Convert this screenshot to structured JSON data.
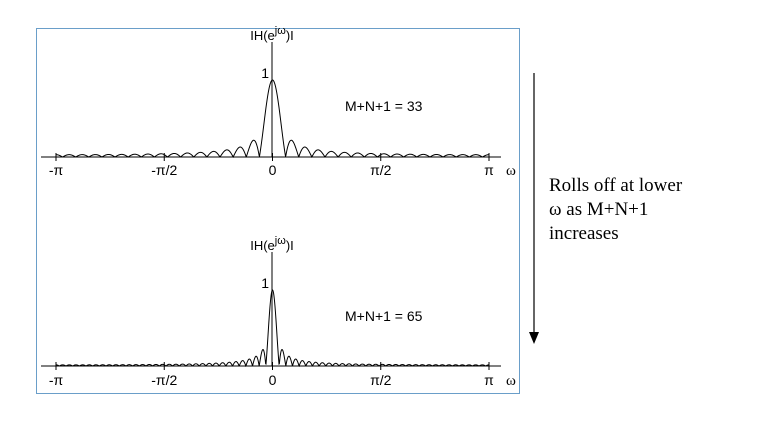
{
  "chart_data": [
    {
      "type": "line",
      "title": "",
      "ylabel": "|H(e^{jω})|",
      "ylabel_main": "IH(e",
      "ylabel_sup": "jω",
      "ylabel_end": ")I",
      "xlabel": "ω",
      "x_tick_labels": [
        "-π",
        "-π/2",
        "0",
        "π/2",
        "π"
      ],
      "x_tick_values": [
        -3.1416,
        -1.5708,
        0,
        1.5708,
        3.1416
      ],
      "xlim": [
        -3.1416,
        3.1416
      ],
      "ylim": [
        0,
        1
      ],
      "y_tick_labels": [
        "1"
      ],
      "annotation": "M+N+1 = 33",
      "filter_length": 33,
      "series": [
        {
          "name": "",
          "function": "|sin(L·ω/2) / (L·sin(ω/2))|, L = 33",
          "x": [
            -3.1416,
            -1.5708,
            -0.5712,
            -0.2856,
            -0.1904,
            0,
            0.1904,
            0.2856,
            0.5712,
            1.5708,
            3.1416
          ],
          "y": [
            0.03,
            0.04,
            0.04,
            0.13,
            0.0,
            1.0,
            0.0,
            0.13,
            0.04,
            0.04,
            0.03
          ]
        }
      ]
    },
    {
      "type": "line",
      "title": "",
      "ylabel": "|H(e^{jω})|",
      "ylabel_main": "IH(e",
      "ylabel_sup": "jω",
      "ylabel_end": ")I",
      "xlabel": "ω",
      "x_tick_labels": [
        "-π",
        "-π/2",
        "0",
        "π/2",
        "π"
      ],
      "x_tick_values": [
        -3.1416,
        -1.5708,
        0,
        1.5708,
        3.1416
      ],
      "xlim": [
        -3.1416,
        3.1416
      ],
      "ylim": [
        0,
        1
      ],
      "y_tick_labels": [
        "1"
      ],
      "annotation": "M+N+1 = 65",
      "filter_length": 65,
      "series": [
        {
          "name": "",
          "function": "|sin(L·ω/2) / (L·sin(ω/2))|, L = 65",
          "x": [
            -3.1416,
            -1.5708,
            -0.145,
            -0.0967,
            0,
            0.0967,
            0.145,
            1.5708,
            3.1416
          ],
          "y": [
            0.015,
            0.02,
            0.13,
            0.0,
            1.0,
            0.0,
            0.13,
            0.02,
            0.015
          ]
        }
      ]
    }
  ],
  "note": {
    "lines": [
      "Rolls off at lower",
      "ω as M+N+1",
      "increases"
    ]
  }
}
